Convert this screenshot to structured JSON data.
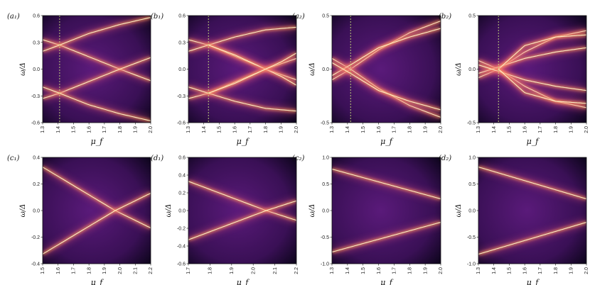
{
  "figure": {
    "colors": {
      "background_dark": "#0a0418",
      "mid": "#5a1a7a",
      "glow": "#ff9a5a",
      "peak": "#fff3c8",
      "marker": "#c8e07a"
    }
  },
  "chart_data": [
    {
      "id": "a1",
      "panel_label": "(a₁)",
      "type": "heatmap",
      "xlabel": "μ_f",
      "ylabel": "ω/Δ",
      "xlim": [
        1.3,
        2.0
      ],
      "ylim": [
        -0.6,
        0.6
      ],
      "xticks": [
        "1.3",
        "1.4",
        "1.5",
        "1.6",
        "1.7",
        "1.8",
        "1.9",
        "2.0"
      ],
      "yticks": [
        "-0.6",
        "-0.3",
        "0.0",
        "0.3",
        "0.6"
      ],
      "marker_x": 1.41,
      "series": [
        {
          "x": [
            1.3,
            1.41,
            1.8,
            2.0
          ],
          "y": [
            0.33,
            0.27,
            0.0,
            -0.13
          ]
        },
        {
          "x": [
            1.3,
            1.41,
            1.8,
            2.0
          ],
          "y": [
            -0.33,
            -0.27,
            0.0,
            0.13
          ]
        },
        {
          "x": [
            1.3,
            1.41,
            1.6,
            1.8,
            2.0
          ],
          "y": [
            0.2,
            0.27,
            0.4,
            0.5,
            0.58
          ]
        },
        {
          "x": [
            1.3,
            1.41,
            1.6,
            1.8,
            2.0
          ],
          "y": [
            -0.2,
            -0.27,
            -0.4,
            -0.5,
            -0.58
          ]
        }
      ]
    },
    {
      "id": "b1",
      "panel_label": "(b₁)",
      "type": "heatmap",
      "xlabel": "μ_f",
      "ylabel": "",
      "xlim": [
        1.3,
        2.0
      ],
      "ylim": [
        -0.6,
        0.6
      ],
      "xticks": [
        "1.3",
        "1.4",
        "1.5",
        "1.6",
        "1.7",
        "1.8",
        "1.9",
        "2.0"
      ],
      "yticks": [
        "-0.6",
        "-0.3",
        "0.0",
        "0.3",
        "0.6"
      ],
      "marker_x": 1.43,
      "series": [
        {
          "x": [
            1.3,
            1.43,
            1.8,
            2.0
          ],
          "y": [
            0.33,
            0.27,
            0.0,
            -0.12
          ]
        },
        {
          "x": [
            1.3,
            1.43,
            1.8,
            2.0
          ],
          "y": [
            -0.33,
            -0.27,
            0.0,
            0.12
          ]
        },
        {
          "x": [
            1.3,
            1.43,
            1.6,
            1.8,
            2.0
          ],
          "y": [
            0.2,
            0.27,
            0.36,
            0.44,
            0.47
          ]
        },
        {
          "x": [
            1.3,
            1.43,
            1.6,
            1.8,
            2.0
          ],
          "y": [
            -0.2,
            -0.27,
            -0.36,
            -0.44,
            -0.47
          ]
        },
        {
          "x": [
            1.43,
            1.6,
            1.75,
            1.9,
            2.0
          ],
          "y": [
            0.27,
            0.16,
            0.04,
            -0.08,
            -0.18
          ]
        },
        {
          "x": [
            1.43,
            1.6,
            1.75,
            1.9,
            2.0
          ],
          "y": [
            -0.27,
            -0.16,
            -0.04,
            0.08,
            0.18
          ]
        }
      ]
    },
    {
      "id": "a2",
      "panel_label": "(a₂)",
      "type": "heatmap",
      "xlabel": "μ_f",
      "ylabel": "ω/Δ",
      "xlim": [
        1.3,
        2.0
      ],
      "ylim": [
        -0.5,
        0.5
      ],
      "xticks": [
        "1.3",
        "1.4",
        "1.5",
        "1.6",
        "1.7",
        "1.8",
        "1.9",
        "2.0"
      ],
      "yticks": [
        "-0.5",
        "0.0",
        "0.5"
      ],
      "marker_x": 1.42,
      "series": [
        {
          "x": [
            1.3,
            1.42,
            1.6,
            1.8,
            2.0
          ],
          "y": [
            -0.1,
            0.0,
            0.18,
            0.34,
            0.45
          ]
        },
        {
          "x": [
            1.3,
            1.42,
            1.6,
            1.8,
            2.0
          ],
          "y": [
            0.1,
            0.0,
            -0.18,
            -0.34,
            -0.45
          ]
        },
        {
          "x": [
            1.3,
            1.42,
            1.6,
            1.8,
            2.0
          ],
          "y": [
            -0.06,
            0.04,
            0.2,
            0.3,
            0.38
          ]
        },
        {
          "x": [
            1.3,
            1.42,
            1.6,
            1.8,
            2.0
          ],
          "y": [
            0.06,
            -0.04,
            -0.2,
            -0.3,
            -0.38
          ]
        }
      ]
    },
    {
      "id": "b2",
      "panel_label": "(b₂)",
      "type": "heatmap",
      "xlabel": "μ_f",
      "ylabel": "ω/Δ",
      "xlim": [
        1.3,
        2.0
      ],
      "ylim": [
        -0.5,
        0.5
      ],
      "xticks": [
        "1.3",
        "1.4",
        "1.5",
        "1.6",
        "1.7",
        "1.8",
        "1.9",
        "2.0"
      ],
      "yticks": [
        "-0.5",
        "0.0",
        "0.5"
      ],
      "marker_x": 1.43,
      "series": [
        {
          "x": [
            1.3,
            1.43,
            1.6,
            1.8,
            2.0
          ],
          "y": [
            -0.08,
            0.0,
            0.16,
            0.3,
            0.36
          ]
        },
        {
          "x": [
            1.3,
            1.43,
            1.6,
            1.8,
            2.0
          ],
          "y": [
            0.08,
            0.0,
            -0.16,
            -0.3,
            -0.36
          ]
        },
        {
          "x": [
            1.3,
            1.43,
            1.6,
            1.8,
            2.0
          ],
          "y": [
            -0.04,
            0.02,
            0.1,
            0.16,
            0.2
          ]
        },
        {
          "x": [
            1.3,
            1.43,
            1.6,
            1.8,
            2.0
          ],
          "y": [
            0.04,
            -0.02,
            -0.1,
            -0.16,
            -0.2
          ]
        },
        {
          "x": [
            1.43,
            1.6,
            1.8,
            2.0
          ],
          "y": [
            0.0,
            0.22,
            0.3,
            0.32
          ]
        },
        {
          "x": [
            1.43,
            1.6,
            1.8,
            2.0
          ],
          "y": [
            0.0,
            -0.22,
            -0.3,
            -0.32
          ]
        }
      ]
    },
    {
      "id": "c1",
      "panel_label": "(c₁)",
      "type": "heatmap",
      "xlabel": "μ_f",
      "ylabel": "ω/Δ",
      "xlim": [
        1.5,
        2.2
      ],
      "ylim": [
        -0.55,
        0.55
      ],
      "xticks": [
        "1.5",
        "1.6",
        "1.7",
        "1.8",
        "1.9",
        "2.0",
        "2.1",
        "2.2"
      ],
      "yticks": [
        "-0.4",
        "-0.2",
        "0.0",
        "0.2",
        "0.4"
      ],
      "series": [
        {
          "x": [
            1.5,
            1.97,
            2.2
          ],
          "y": [
            0.45,
            0.0,
            -0.18
          ]
        },
        {
          "x": [
            1.5,
            1.97,
            2.2
          ],
          "y": [
            -0.45,
            0.0,
            0.18
          ]
        }
      ]
    },
    {
      "id": "d1",
      "panel_label": "(d₁)",
      "type": "heatmap",
      "xlabel": "μ_f",
      "ylabel": "ω/Δ",
      "xlim": [
        1.7,
        2.2
      ],
      "ylim": [
        -0.6,
        0.6
      ],
      "xticks": [
        "1.7",
        "1.8",
        "1.9",
        "2.0",
        "2.1",
        "2.2"
      ],
      "yticks": [
        "-0.6",
        "-0.4",
        "-0.2",
        "0.0",
        "0.2",
        "0.4",
        "0.6"
      ],
      "series": [
        {
          "x": [
            1.7,
            2.06,
            2.2
          ],
          "y": [
            0.33,
            0.0,
            -0.11
          ]
        },
        {
          "x": [
            1.7,
            2.06,
            2.2
          ],
          "y": [
            -0.33,
            0.0,
            0.11
          ]
        }
      ]
    },
    {
      "id": "c2",
      "panel_label": "(c₂)",
      "type": "heatmap",
      "xlabel": "μ_f",
      "ylabel": "ω/Δ",
      "xlim": [
        1.3,
        2.0
      ],
      "ylim": [
        -1.0,
        1.0
      ],
      "xticks": [
        "1.3",
        "1.4",
        "1.5",
        "1.6",
        "1.7",
        "1.8",
        "1.9",
        "2.0"
      ],
      "yticks": [
        "-1.0",
        "-0.5",
        "0.0",
        "0.5",
        "1.0"
      ],
      "series": [
        {
          "x": [
            1.3,
            2.0
          ],
          "y": [
            0.78,
            0.22
          ]
        },
        {
          "x": [
            1.3,
            2.0
          ],
          "y": [
            -0.78,
            -0.22
          ]
        }
      ]
    },
    {
      "id": "d2",
      "panel_label": "(d₂)",
      "type": "heatmap",
      "xlabel": "μ_f",
      "ylabel": "ω/Δ",
      "xlim": [
        1.3,
        2.0
      ],
      "ylim": [
        -1.0,
        1.0
      ],
      "xticks": [
        "1.3",
        "1.4",
        "1.5",
        "1.6",
        "1.7",
        "1.8",
        "1.9",
        "2.0"
      ],
      "yticks": [
        "-1.0",
        "-0.5",
        "0.0",
        "0.5",
        "1.0"
      ],
      "series": [
        {
          "x": [
            1.3,
            2.0
          ],
          "y": [
            0.82,
            0.22
          ]
        },
        {
          "x": [
            1.3,
            2.0
          ],
          "y": [
            -0.82,
            -0.22
          ]
        }
      ]
    }
  ]
}
